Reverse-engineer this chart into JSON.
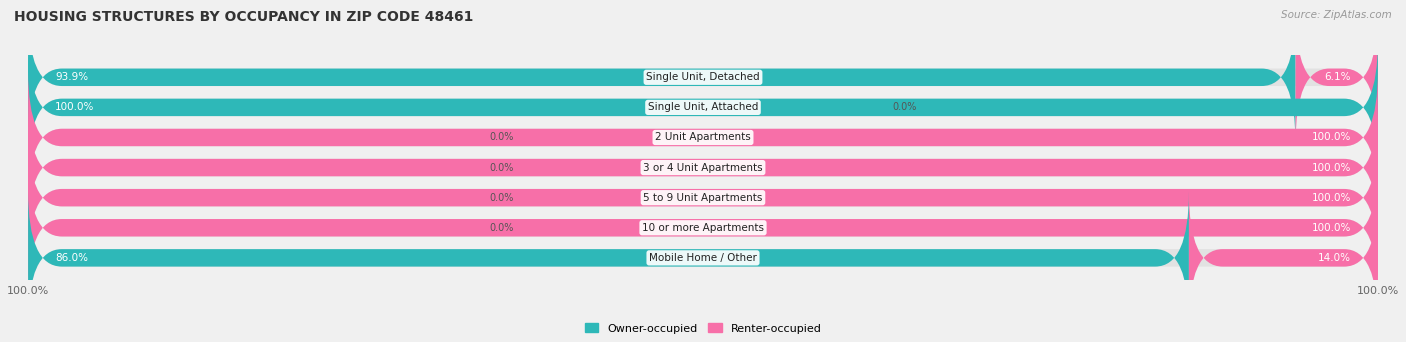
{
  "title": "HOUSING STRUCTURES BY OCCUPANCY IN ZIP CODE 48461",
  "source": "Source: ZipAtlas.com",
  "categories": [
    "Single Unit, Detached",
    "Single Unit, Attached",
    "2 Unit Apartments",
    "3 or 4 Unit Apartments",
    "5 to 9 Unit Apartments",
    "10 or more Apartments",
    "Mobile Home / Other"
  ],
  "owner_pct": [
    93.9,
    100.0,
    0.0,
    0.0,
    0.0,
    0.0,
    86.0
  ],
  "renter_pct": [
    6.1,
    0.0,
    100.0,
    100.0,
    100.0,
    100.0,
    14.0
  ],
  "owner_color": "#2eb8b8",
  "renter_color": "#f76fa8",
  "bg_color": "#f0f0f0",
  "bar_bg_color": "#e2e2e2",
  "title_fontsize": 10,
  "source_fontsize": 7.5,
  "label_fontsize": 7.5,
  "cat_fontsize": 7.5,
  "bar_height": 0.58,
  "figsize": [
    14.06,
    3.42
  ],
  "dpi": 100
}
